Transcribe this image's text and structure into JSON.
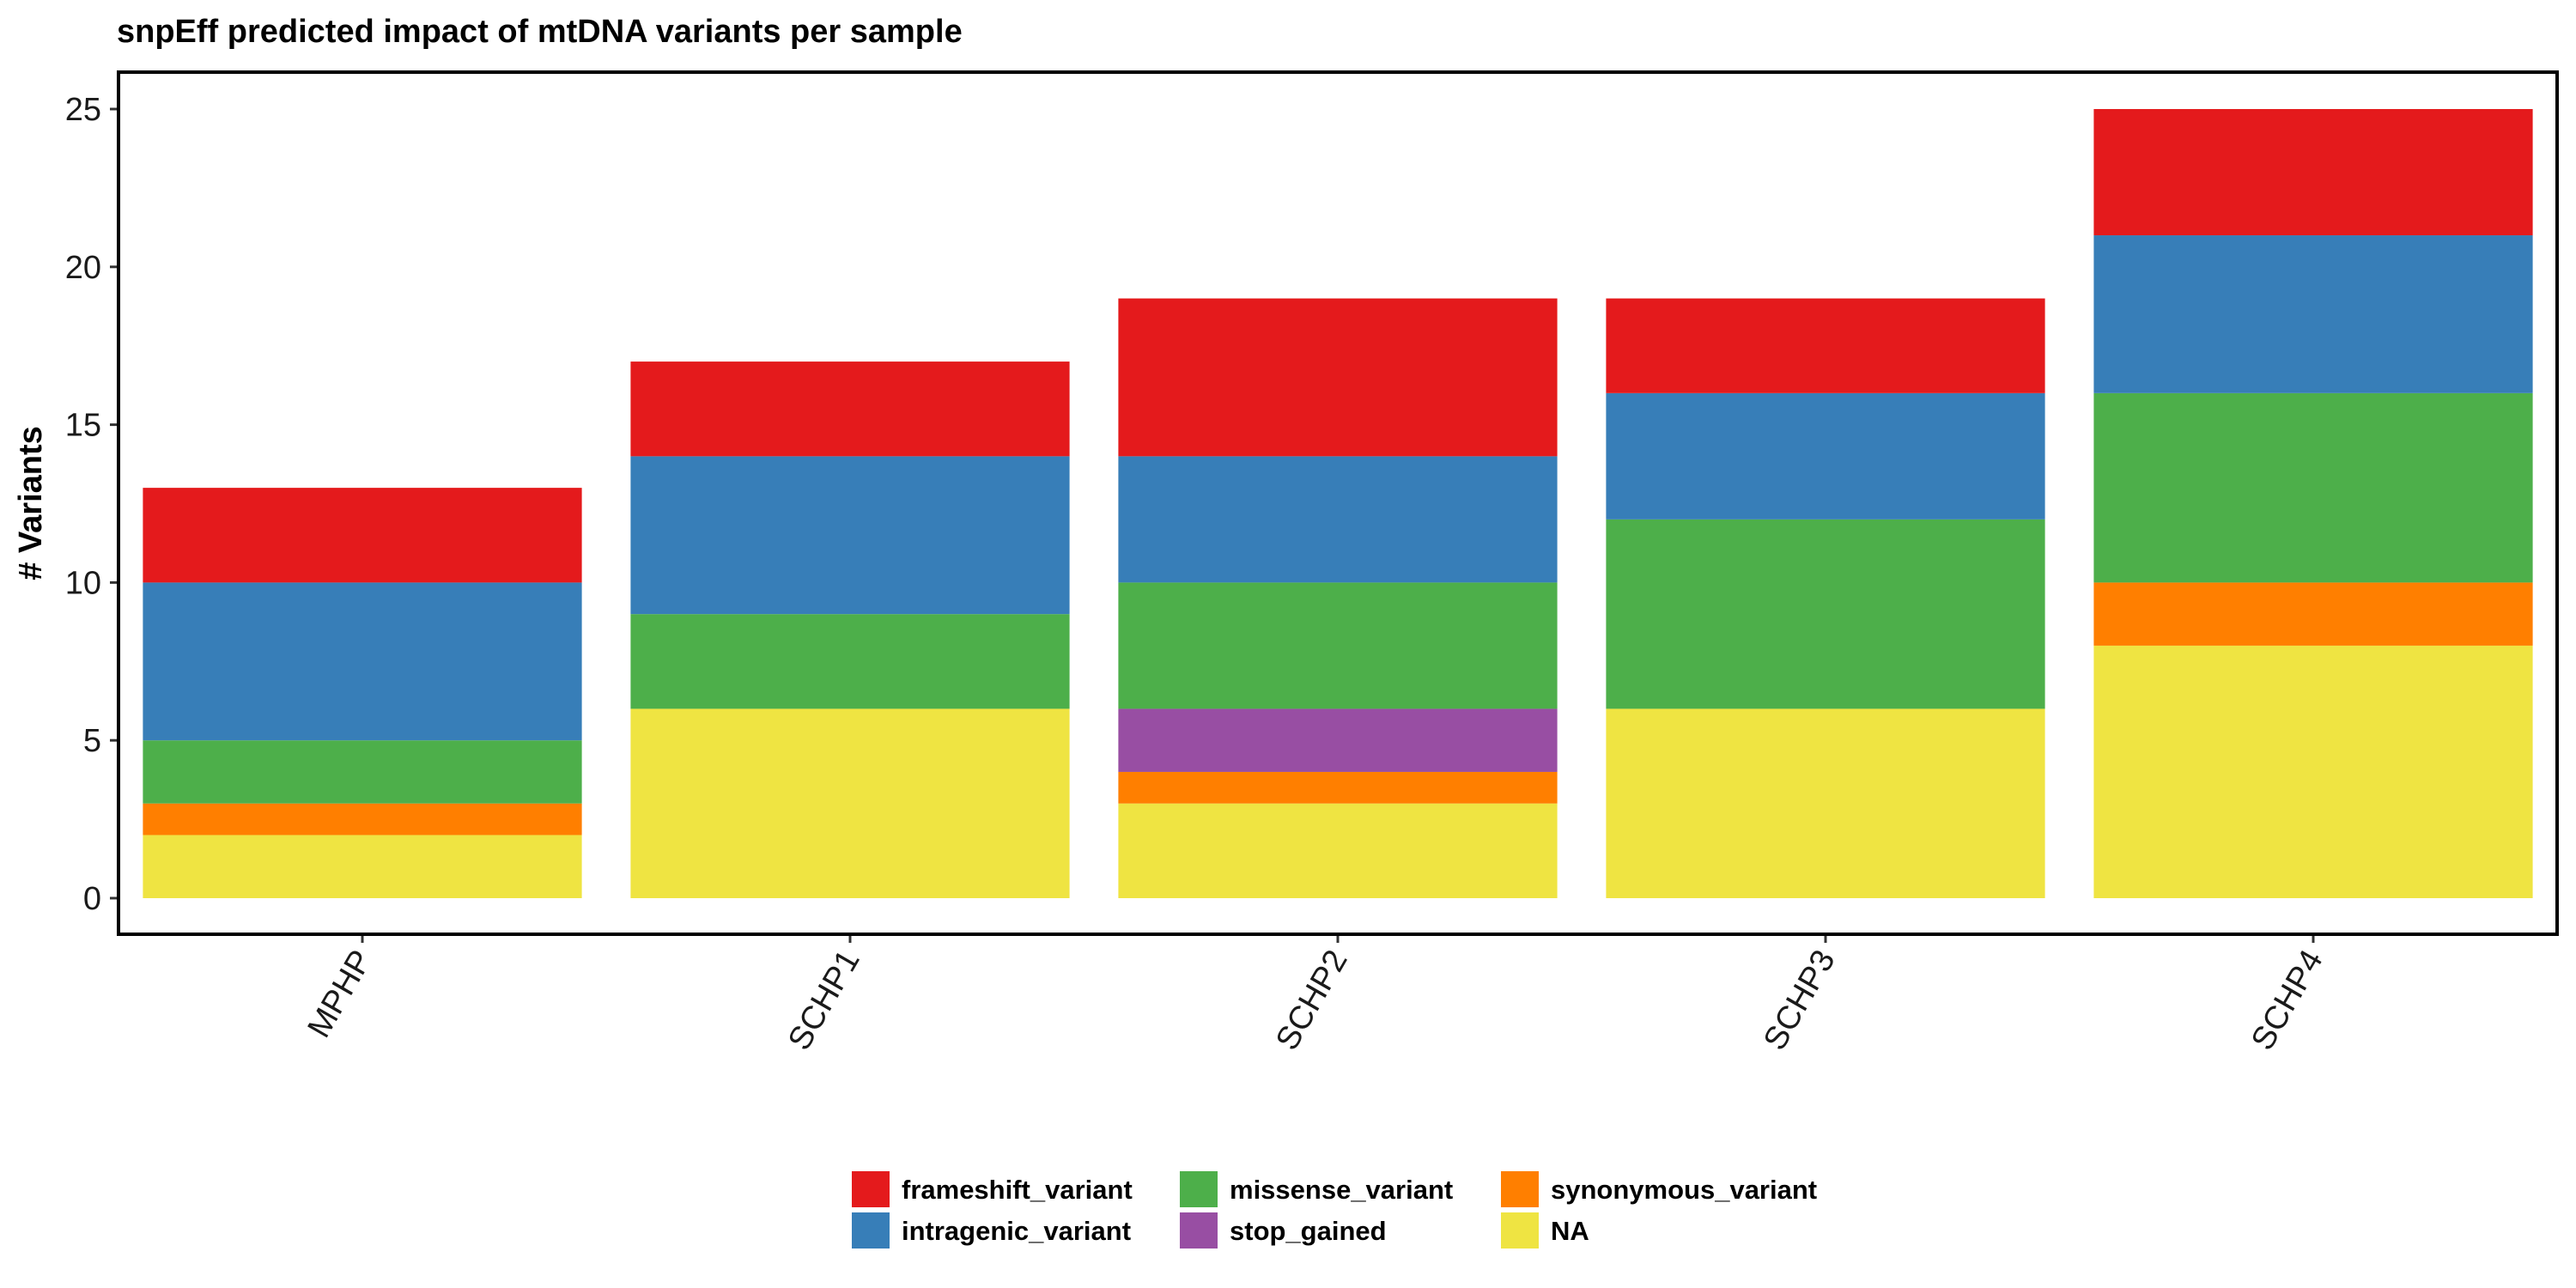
{
  "chart_data": {
    "type": "bar",
    "stacked": true,
    "title": "snpEff predicted impact of mtDNA variants per sample",
    "xlabel": "",
    "ylabel": "# Variants",
    "ylim": [
      0,
      25
    ],
    "y_ticks": [
      0,
      5,
      10,
      15,
      20,
      25
    ],
    "grid": false,
    "legend_position": "bottom",
    "categories": [
      "MPHP",
      "SCHP1",
      "SCHP2",
      "SCHP3",
      "SCHP4"
    ],
    "series": [
      {
        "name": "NA",
        "color": "#EFE442",
        "values": [
          2,
          6,
          3,
          6,
          8
        ]
      },
      {
        "name": "synonymous_variant",
        "color": "#FF7F00",
        "values": [
          1,
          0,
          1,
          0,
          2
        ]
      },
      {
        "name": "stop_gained",
        "color": "#984EA3",
        "values": [
          0,
          0,
          2,
          0,
          0
        ]
      },
      {
        "name": "missense_variant",
        "color": "#4DAF4A",
        "values": [
          2,
          3,
          4,
          6,
          6
        ]
      },
      {
        "name": "intragenic_variant",
        "color": "#377EB8",
        "values": [
          5,
          5,
          4,
          4,
          5
        ]
      },
      {
        "name": "frameshift_variant",
        "color": "#E41A1C",
        "values": [
          3,
          3,
          5,
          3,
          4
        ]
      }
    ],
    "legend_order": [
      "frameshift_variant",
      "intragenic_variant",
      "missense_variant",
      "stop_gained",
      "synonymous_variant",
      "NA"
    ]
  }
}
